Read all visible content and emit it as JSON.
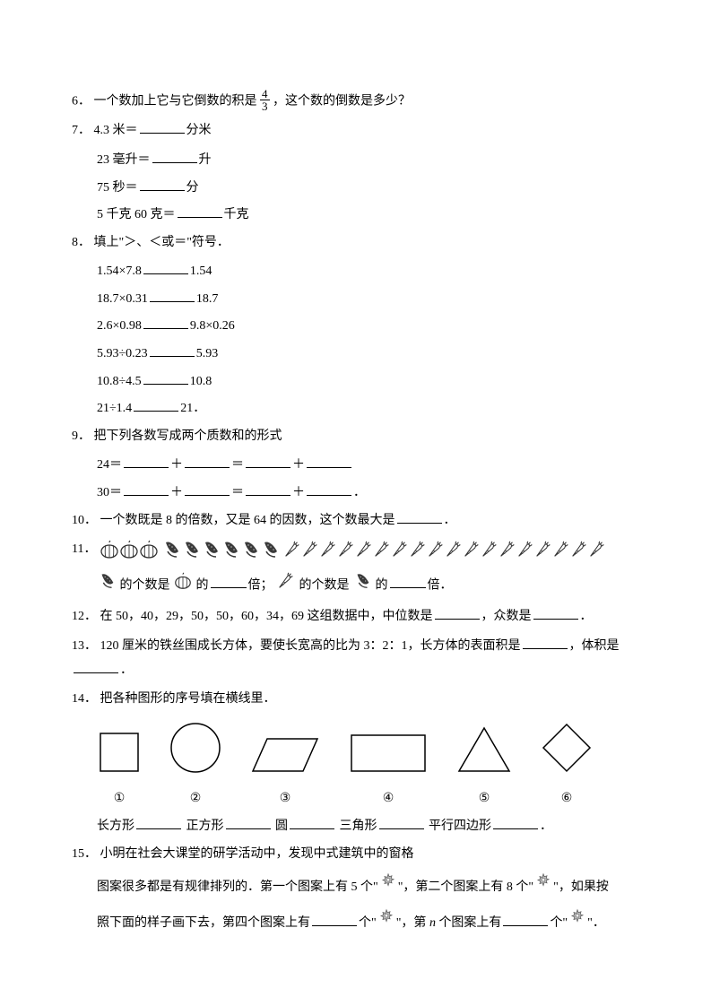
{
  "q6": {
    "num": "6．",
    "text_a": "一个数加上它与它倒数的积是",
    "frac_n": "4",
    "frac_d": "3",
    "text_b": "，这个数的倒数是多少？"
  },
  "q7": {
    "num": "7．",
    "a_pre": "4.3 米＝",
    "a_post": "分米",
    "b_pre": "23 毫升＝",
    "b_post": "升",
    "c_pre": "75 秒＝",
    "c_post": "分",
    "d_pre": "5 千克 60 克＝",
    "d_post": "千克"
  },
  "q8": {
    "num": "8．",
    "title": "填上\"＞、＜或＝\"符号．",
    "rows": [
      {
        "l": "1.54×7.8",
        "r": "1.54"
      },
      {
        "l": "18.7×0.31",
        "r": "18.7"
      },
      {
        "l": "2.6×0.98",
        "r": "9.8×0.26"
      },
      {
        "l": "5.93÷0.23",
        "r": "5.93"
      },
      {
        "l": "10.8÷4.5",
        "r": "10.8"
      },
      {
        "l": "21÷1.4",
        "r": "21．"
      }
    ]
  },
  "q9": {
    "num": "9．",
    "title": "把下列各数写成两个质数和的形式",
    "a": "24＝",
    "b": "30＝",
    "plus": "＋",
    "eq": "＝",
    "period": "．"
  },
  "q10": {
    "num": "10．",
    "text_a": "一个数既是 8 的倍数，又是 64 的因数，这个数最大是",
    "text_b": "．"
  },
  "q11": {
    "num": "11．",
    "pumpkin_count": 3,
    "corn_count": 6,
    "carrot_count": 18,
    "line2_a": "的个数是",
    "line2_b": "的",
    "line2_c": "倍；",
    "line2_d": "的个数是",
    "line2_e": "的",
    "line2_f": "倍．"
  },
  "q12": {
    "num": "12．",
    "text_a": "在 50，40，29，50，50，60，34，69 这组数据中，中位数是",
    "text_b": "，众数是",
    "text_c": "．"
  },
  "q13": {
    "num": "13．",
    "text_a": "120 厘米的铁丝围成长方体，要使长宽高的比为 3：2：1，长方体的表面积是",
    "text_b": "，体积是",
    "text_c": "．"
  },
  "q14": {
    "num": "14．",
    "title": "把各种图形的序号填在横线里．",
    "labels": [
      "①",
      "②",
      "③",
      "④",
      "⑤",
      "⑥"
    ],
    "cat": {
      "rect": "长方形",
      "square": "正方形",
      "circle": "圆",
      "tri": "三角形",
      "para": "平行四边形",
      "period": "．"
    },
    "shapes": {
      "stroke": "#000000",
      "stroke_width": 1.5,
      "fill": "#ffffff"
    }
  },
  "q15": {
    "num": "15．",
    "text_a": "小明在社会大课堂的研学活动中，发现中式建筑中的窗格",
    "text_b": "图案很多都是有规律排列的．第一个图案上有 5 个\"",
    "text_c": "\"，第二个图案上有 8 个\"",
    "text_d": "\"，如果按",
    "text_e": "照下面的样子画下去，第四个图案上有",
    "text_f": "个\"",
    "text_g": "\"，第 ",
    "text_h": " 个图案上有",
    "text_i": "个\"",
    "text_j": "\"．",
    "n_var": "n"
  },
  "colors": {
    "text": "#000000",
    "bg": "#ffffff",
    "icon_dark": "#3a3a3a",
    "icon_mid": "#6b6b6b",
    "star_fill": "#bdbdbd",
    "star_stroke": "#555555"
  }
}
